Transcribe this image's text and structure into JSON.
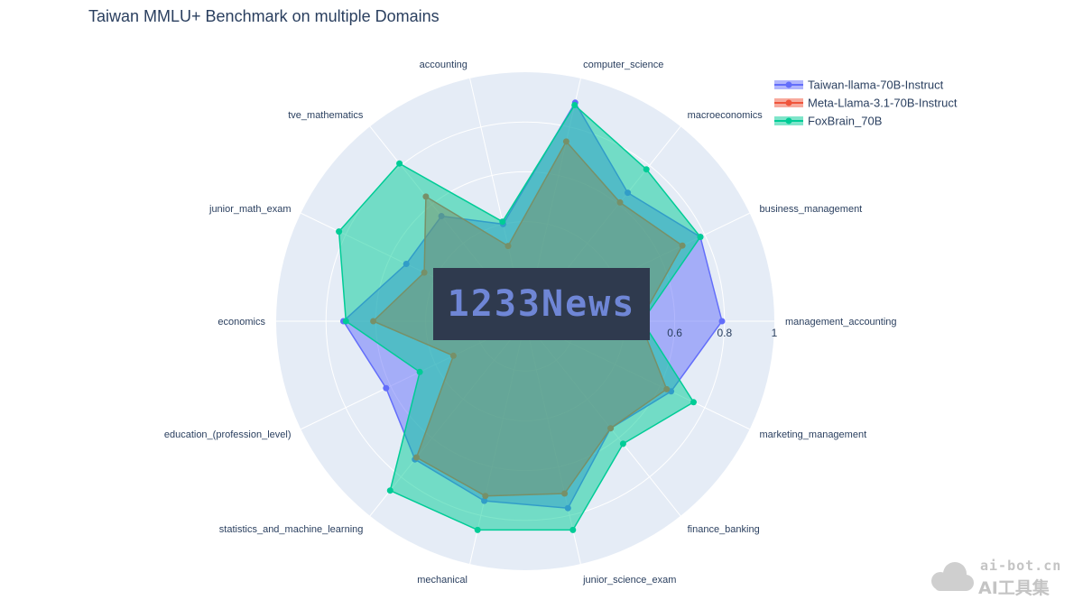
{
  "chart_data": {
    "type": "radar",
    "title": "Taiwan MMLU+ Benchmark on multiple Domains",
    "radial_range": [
      0,
      1
    ],
    "radial_ticks": [
      {
        "value": 0.6,
        "label": "0.6"
      },
      {
        "value": 0.8,
        "label": "0.8"
      },
      {
        "value": 1,
        "label": "1"
      }
    ],
    "categories": [
      "management_accounting",
      "business_management",
      "macroeconomics",
      "computer_science",
      "accounting",
      "tve_mathematics",
      "junior_math_exam",
      "economics",
      "education_(profession_level)",
      "statistics_and_machine_learning",
      "mechanical",
      "junior_science_exam",
      "finance_banking",
      "marketing_management"
    ],
    "legend_position": "top-right",
    "grid": true,
    "series": [
      {
        "name": "Taiwan-llama-70B-Instruct",
        "color": "#636efa",
        "values": [
          0.79,
          0.78,
          0.66,
          0.9,
          0.4,
          0.54,
          0.53,
          0.73,
          0.62,
          0.71,
          0.74,
          0.77,
          0.55,
          0.65
        ]
      },
      {
        "name": "Meta-Llama-3.1-70B-Instruct",
        "color": "#ef553b",
        "values": [
          0.46,
          0.7,
          0.61,
          0.74,
          0.31,
          0.64,
          0.45,
          0.61,
          0.32,
          0.7,
          0.72,
          0.71,
          0.55,
          0.63
        ]
      },
      {
        "name": "FoxBrain_70B",
        "color": "#00cc96",
        "values": [
          0.47,
          0.78,
          0.78,
          0.89,
          0.41,
          0.81,
          0.83,
          0.72,
          0.47,
          0.87,
          0.86,
          0.86,
          0.63,
          0.75
        ]
      }
    ]
  },
  "overlay": {
    "watermark_center": "1233News",
    "watermark_corner_top": "ai-bot.cn",
    "watermark_corner_bottom": "AI工具集"
  }
}
